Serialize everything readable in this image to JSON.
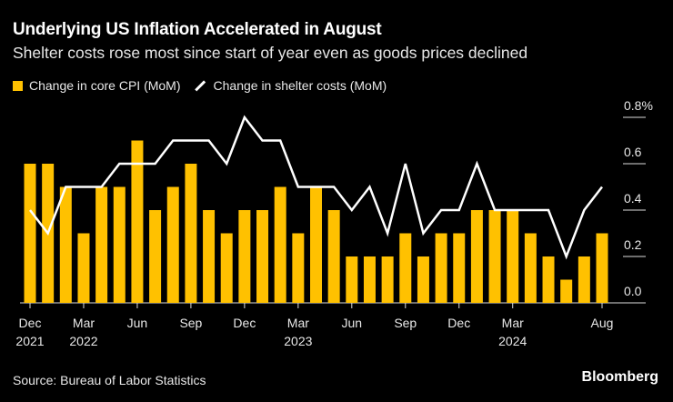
{
  "title": "Underlying US Inflation Accelerated in August",
  "subtitle": "Shelter costs rose most since start of year even as goods prices declined",
  "source": "Source: Bureau of Labor Statistics",
  "brand": "Bloomberg",
  "colors": {
    "bar": "#ffc100",
    "line": "#ffffff",
    "background": "#000000"
  },
  "chart_data": {
    "type": "bar+line",
    "months": [
      "Dec 2021",
      "Jan 2022",
      "Feb 2022",
      "Mar 2022",
      "Apr 2022",
      "May 2022",
      "Jun 2022",
      "Jul 2022",
      "Aug 2022",
      "Sep 2022",
      "Oct 2022",
      "Nov 2022",
      "Dec 2022",
      "Jan 2023",
      "Feb 2023",
      "Mar 2023",
      "Apr 2023",
      "May 2023",
      "Jun 2023",
      "Jul 2023",
      "Aug 2023",
      "Sep 2023",
      "Oct 2023",
      "Nov 2023",
      "Dec 2023",
      "Jan 2024",
      "Feb 2024",
      "Mar 2024",
      "Apr 2024",
      "May 2024",
      "Jun 2024",
      "Jul 2024",
      "Aug 2024"
    ],
    "series": [
      {
        "name": "Change in core CPI (MoM)",
        "type": "bar",
        "values": [
          0.6,
          0.6,
          0.5,
          0.3,
          0.5,
          0.5,
          0.7,
          0.4,
          0.5,
          0.6,
          0.4,
          0.3,
          0.4,
          0.4,
          0.5,
          0.3,
          0.5,
          0.4,
          0.2,
          0.2,
          0.2,
          0.3,
          0.2,
          0.3,
          0.3,
          0.4,
          0.4,
          0.4,
          0.3,
          0.2,
          0.1,
          0.2,
          0.3
        ]
      },
      {
        "name": "Change in shelter costs (MoM)",
        "type": "line",
        "values": [
          0.4,
          0.3,
          0.5,
          0.5,
          0.5,
          0.6,
          0.6,
          0.6,
          0.7,
          0.7,
          0.7,
          0.6,
          0.8,
          0.7,
          0.7,
          0.5,
          0.5,
          0.5,
          0.4,
          0.5,
          0.3,
          0.6,
          0.3,
          0.4,
          0.4,
          0.6,
          0.4,
          0.4,
          0.4,
          0.4,
          0.2,
          0.4,
          0.5
        ]
      }
    ],
    "x_ticks": [
      {
        "index": 0,
        "label": "Dec",
        "year": "2021"
      },
      {
        "index": 3,
        "label": "Mar",
        "year": "2022"
      },
      {
        "index": 6,
        "label": "Jun",
        "year": ""
      },
      {
        "index": 9,
        "label": "Sep",
        "year": ""
      },
      {
        "index": 12,
        "label": "Dec",
        "year": ""
      },
      {
        "index": 15,
        "label": "Mar",
        "year": "2023"
      },
      {
        "index": 18,
        "label": "Jun",
        "year": ""
      },
      {
        "index": 21,
        "label": "Sep",
        "year": ""
      },
      {
        "index": 24,
        "label": "Dec",
        "year": ""
      },
      {
        "index": 27,
        "label": "Mar",
        "year": "2024"
      },
      {
        "index": 32,
        "label": "Aug",
        "year": ""
      }
    ],
    "y_ticks": [
      {
        "value": 0.0,
        "label": "0.0"
      },
      {
        "value": 0.2,
        "label": "0.2"
      },
      {
        "value": 0.4,
        "label": "0.4"
      },
      {
        "value": 0.6,
        "label": "0.6"
      },
      {
        "value": 0.8,
        "label": "0.8%"
      }
    ],
    "ylim": [
      0,
      0.8
    ],
    "y_axis_position": "right",
    "legend_placement": "top-left"
  }
}
